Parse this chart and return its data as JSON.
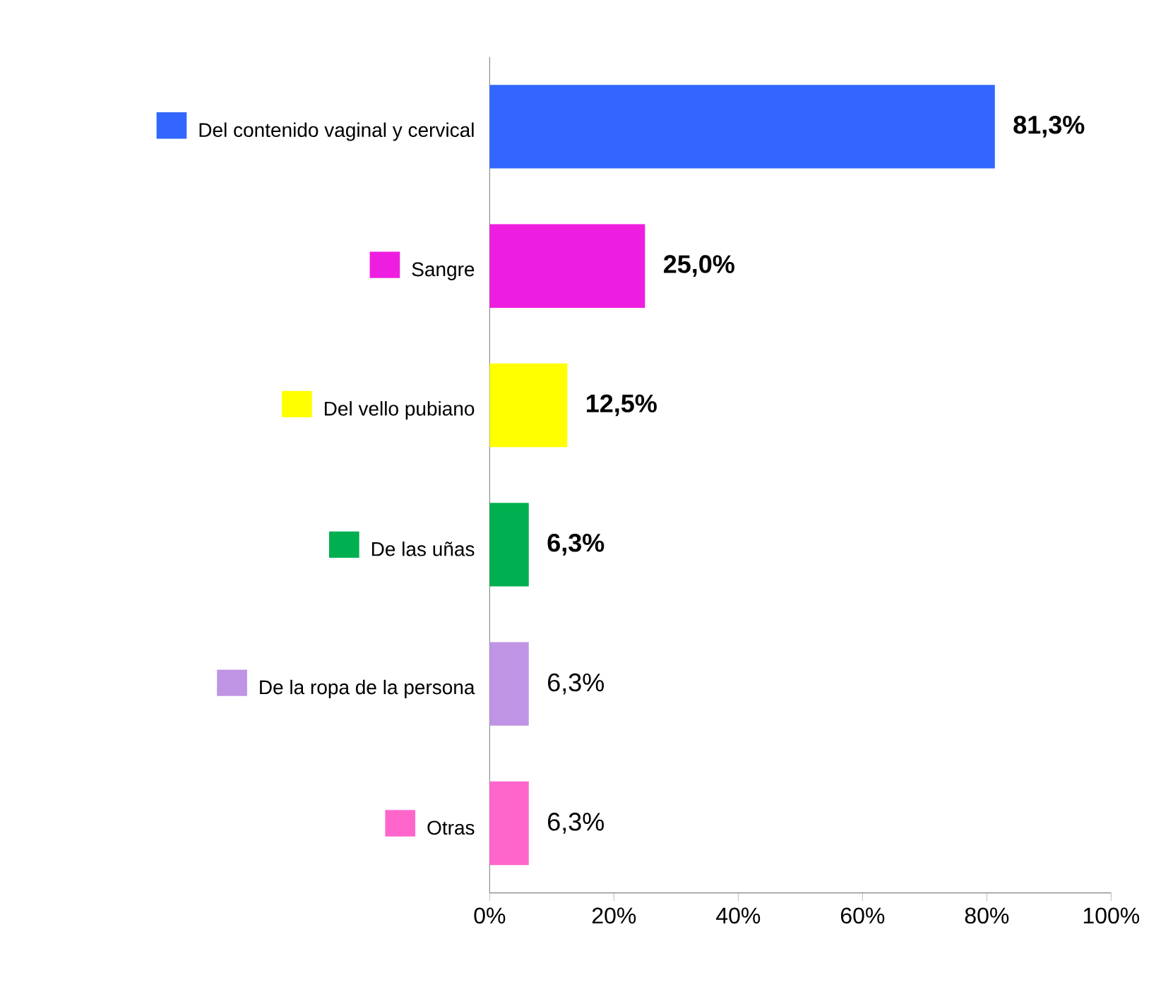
{
  "chart_data": {
    "type": "bar",
    "orientation": "horizontal",
    "categories": [
      "Del contenido vaginal y cervical",
      "Sangre",
      "Del vello pubiano",
      "De las uñas",
      "De la ropa de la persona",
      "Otras"
    ],
    "values": [
      81.3,
      25.0,
      12.5,
      6.3,
      6.3,
      6.3
    ],
    "colors": [
      "#3366ff",
      "#ee1ee0",
      "#ffff00",
      "#00b050",
      "#bf94e4",
      "#ff66cc"
    ],
    "value_labels": [
      "**81,3%**",
      "**25,0%**",
      "**12,5%**",
      "**6,3%**",
      "6,3%",
      "6,3%"
    ],
    "xlim": [
      0,
      100
    ],
    "xticks": [
      {
        "value": 0,
        "label": "0%"
      },
      {
        "value": 20,
        "label": "20%"
      },
      {
        "value": 40,
        "label": "40%"
      },
      {
        "value": 60,
        "label": "60%"
      },
      {
        "value": 80,
        "label": "80%"
      },
      {
        "value": 100,
        "label": "100%"
      }
    ],
    "grid": false
  }
}
